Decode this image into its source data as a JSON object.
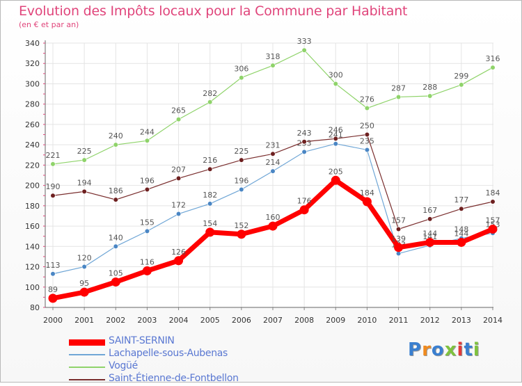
{
  "title": "Evolution des Impôts locaux pour la Commune par Habitant",
  "subtitle": "(en € et par an)",
  "logo": {
    "text": "Proxiti",
    "colors": [
      "#3a7fd0",
      "#ef8a1e",
      "#3a7fd0",
      "#7fc23e",
      "#e23a3a",
      "#3a7fd0",
      "#7fc23e"
    ]
  },
  "chart_data": {
    "type": "line",
    "x": [
      2000,
      2001,
      2002,
      2003,
      2004,
      2005,
      2006,
      2007,
      2008,
      2009,
      2010,
      2011,
      2012,
      2013,
      2014
    ],
    "ylim": [
      80,
      340
    ],
    "yticks": [
      80,
      100,
      120,
      140,
      160,
      180,
      200,
      220,
      240,
      260,
      280,
      300,
      320,
      340
    ],
    "grid": true,
    "legend_position": "bottom-left",
    "series": [
      {
        "name": "SAINT-SERNIN",
        "color": "#ff0000",
        "marker_color": "#ff0000",
        "label_color": "#555555",
        "thick": true,
        "values": [
          89,
          95,
          105,
          116,
          126,
          154,
          152,
          160,
          176,
          205,
          184,
          139,
          144,
          144,
          157
        ],
        "labels": [
          "89",
          "95",
          "105",
          "116",
          "126",
          "154",
          "152",
          "160",
          "176",
          "205",
          "184",
          "139",
          "144",
          "144",
          "157"
        ]
      },
      {
        "name": "Lachapelle-sous-Aubenas",
        "color": "#6fa6d6",
        "marker_color": "#4a86c4",
        "label_color": "#555555",
        "thick": false,
        "values": [
          113,
          120,
          140,
          155,
          172,
          182,
          196,
          214,
          233,
          241,
          235,
          133,
          141,
          148,
          153
        ],
        "labels": [
          "113",
          "120",
          "140",
          "155",
          "172",
          "182",
          "196",
          "214",
          "233",
          "241",
          "235",
          "133",
          "141",
          "148",
          "153"
        ]
      },
      {
        "name": "Vogüé",
        "color": "#8fd36a",
        "marker_color": "#8fd36a",
        "label_color": "#555555",
        "thick": false,
        "values": [
          221,
          225,
          240,
          244,
          265,
          282,
          306,
          318,
          333,
          300,
          276,
          287,
          288,
          299,
          316
        ],
        "labels": [
          "221",
          "225",
          "240",
          "244",
          "265",
          "282",
          "306",
          "318",
          "333",
          "300",
          "276",
          "287",
          "288",
          "299",
          "316"
        ]
      },
      {
        "name": "Saint-Étienne-de-Fontbellon",
        "color": "#7a2e2e",
        "marker_color": "#6e2020",
        "label_color": "#555555",
        "thick": false,
        "values": [
          190,
          194,
          186,
          196,
          207,
          216,
          225,
          231,
          243,
          246,
          250,
          157,
          167,
          177,
          184
        ],
        "labels": [
          "190",
          "194",
          "186",
          "196",
          "207",
          "216",
          "225",
          "231",
          "243",
          "246",
          "250",
          "157",
          "167",
          "177",
          "184"
        ]
      }
    ]
  }
}
